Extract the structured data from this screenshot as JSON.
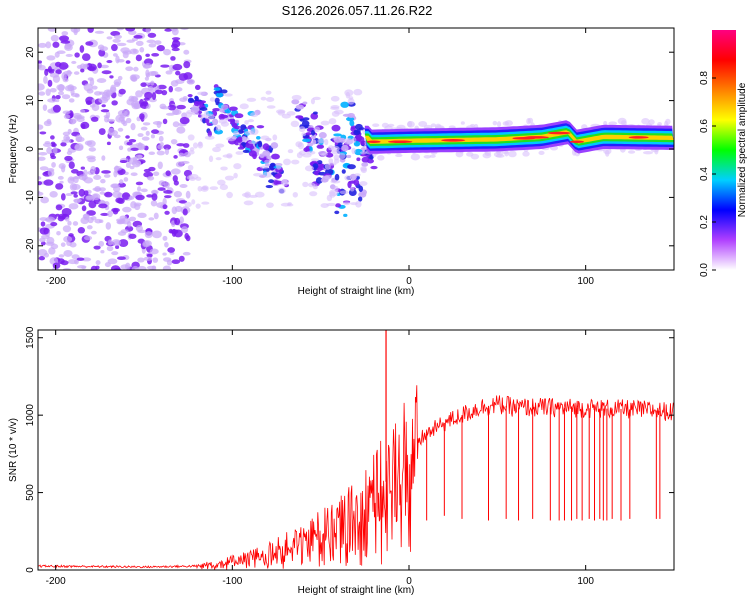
{
  "title": "S126.2026.057.11.26.R22",
  "chart_data": [
    {
      "type": "heatmap",
      "name": "spectrogram",
      "xlabel": "Height of straight line (km)",
      "ylabel": "Frequency (Hz)",
      "xlim": [
        -210,
        150
      ],
      "ylim": [
        -25,
        25
      ],
      "xticks": [
        -200,
        -100,
        0,
        100
      ],
      "yticks": [
        -20,
        -10,
        0,
        10,
        20
      ],
      "colorbar": {
        "label": "Normalized spectral amplitude",
        "range": [
          0,
          1
        ],
        "ticks": [
          "0.0",
          "0.2",
          "0.4",
          "0.6",
          "0.8"
        ],
        "colors": [
          "#ffffff",
          "#b040ff",
          "#0000ff",
          "#00d0ff",
          "#00ff00",
          "#ffff00",
          "#ff8000",
          "#ff0000",
          "#ff0080"
        ]
      },
      "features": [
        {
          "label": "noise",
          "x_range": [
            -210,
            -125
          ],
          "freq_range": [
            -25,
            25
          ],
          "amplitude": 0.1
        },
        {
          "label": "descending streaks",
          "x_range": [
            -125,
            -25
          ],
          "freq_range": [
            -12,
            12
          ],
          "amplitude": 0.25
        },
        {
          "label": "carrier",
          "x_range": [
            -25,
            150
          ],
          "freq_points": [
            [
              -22,
              1.5
            ],
            [
              0,
              1.7
            ],
            [
              50,
              2.0
            ],
            [
              75,
              2.5
            ],
            [
              90,
              3.5
            ],
            [
              95,
              1.5
            ],
            [
              110,
              2.5
            ],
            [
              150,
              2.3
            ]
          ],
          "amplitude": 0.7
        }
      ]
    },
    {
      "type": "line",
      "name": "snr",
      "xlabel": "Height of straight line (km)",
      "ylabel": "SNR (10 * v/v)",
      "xlim": [
        -210,
        150
      ],
      "ylim": [
        0,
        1550
      ],
      "xticks": [
        -200,
        -100,
        0,
        100
      ],
      "yticks": [
        0,
        500,
        1000,
        1500
      ],
      "color": "#ff0000",
      "series": [
        {
          "name": "SNR envelope",
          "x": [
            -210,
            -150,
            -120,
            -100,
            -80,
            -60,
            -40,
            -30,
            -20,
            -10,
            -5,
            0,
            10,
            20,
            30,
            40,
            50,
            60,
            80,
            100,
            120,
            140,
            150
          ],
          "y": [
            25,
            20,
            25,
            60,
            110,
            200,
            300,
            380,
            500,
            600,
            700,
            780,
            880,
            950,
            1000,
            1050,
            1070,
            1050,
            1050,
            1045,
            1040,
            1030,
            1020
          ]
        },
        {
          "name": "SNR peak",
          "x": [
            -13
          ],
          "y": [
            1550
          ]
        },
        {
          "name": "SNR dropouts",
          "x": [
            10,
            20,
            30,
            45,
            55,
            62,
            70,
            80,
            85,
            88,
            92,
            95,
            98,
            102,
            105,
            108,
            110,
            112,
            115,
            120,
            125,
            140,
            142
          ],
          "y": [
            320,
            350,
            330,
            320,
            330,
            320,
            330,
            320,
            320,
            320,
            320,
            330,
            320,
            330,
            320,
            330,
            320,
            320,
            330,
            320,
            330,
            330,
            330
          ]
        }
      ]
    }
  ]
}
